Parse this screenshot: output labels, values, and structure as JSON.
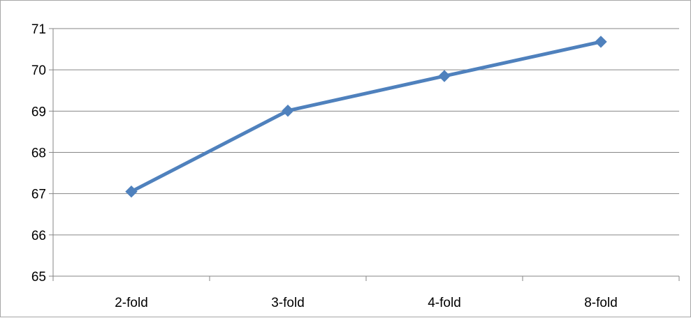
{
  "chart_data": {
    "type": "line",
    "title": "",
    "xlabel": "",
    "ylabel": "",
    "categories": [
      "2-fold",
      "3-fold",
      "4-fold",
      "8-fold"
    ],
    "series": [
      {
        "values": [
          67.05,
          69.01,
          69.85,
          70.68
        ],
        "color": "#4f81bd",
        "marker": "diamond"
      }
    ],
    "ylim": [
      65,
      71
    ],
    "yticks": [
      "65",
      "66",
      "67",
      "68",
      "69",
      "70",
      "71"
    ],
    "grid": {
      "horizontal": true,
      "vertical": false,
      "color": "#868686"
    },
    "legend": "none"
  }
}
